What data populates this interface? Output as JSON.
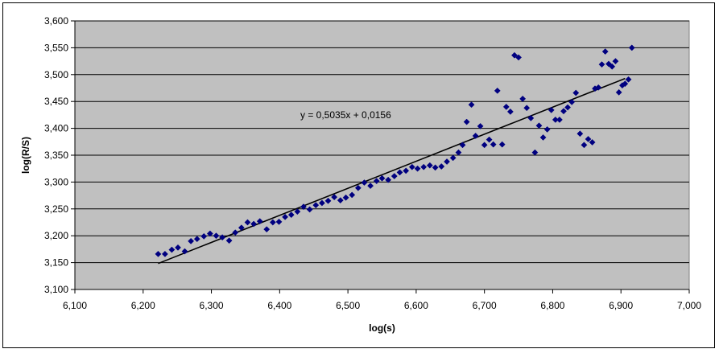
{
  "chart_data": {
    "type": "scatter",
    "xlabel": "log(s)",
    "ylabel": "log(R/S)",
    "xlim": [
      6.1,
      7.0
    ],
    "ylim": [
      3.1,
      3.6
    ],
    "x_ticks": [
      "6,100",
      "6,200",
      "6,300",
      "6,400",
      "6,500",
      "6,600",
      "6,700",
      "6,800",
      "6,900",
      "7,000"
    ],
    "y_ticks": [
      "3,100",
      "3,150",
      "3,200",
      "3,250",
      "3,300",
      "3,350",
      "3,400",
      "3,450",
      "3,500",
      "3,550",
      "3,600"
    ],
    "grid": "horizontal",
    "plot_background": "#c0c0c0",
    "marker_color": "#000080",
    "trendline": {
      "equation": "y = 0,5035x + 0,0156",
      "slope": 0.5035,
      "intercept": 0.0156,
      "x_range": [
        6.222,
        6.906
      ],
      "color": "#000000"
    },
    "points": [
      [
        6.222,
        3.166
      ],
      [
        6.232,
        3.166
      ],
      [
        6.242,
        3.174
      ],
      [
        6.251,
        3.178
      ],
      [
        6.261,
        3.171
      ],
      [
        6.27,
        3.19
      ],
      [
        6.279,
        3.194
      ],
      [
        6.289,
        3.199
      ],
      [
        6.298,
        3.204
      ],
      [
        6.307,
        3.2
      ],
      [
        6.316,
        3.197
      ],
      [
        6.326,
        3.191
      ],
      [
        6.335,
        3.206
      ],
      [
        6.344,
        3.215
      ],
      [
        6.353,
        3.225
      ],
      [
        6.362,
        3.222
      ],
      [
        6.371,
        3.227
      ],
      [
        6.381,
        3.212
      ],
      [
        6.39,
        3.225
      ],
      [
        6.399,
        3.226
      ],
      [
        6.408,
        3.235
      ],
      [
        6.417,
        3.239
      ],
      [
        6.426,
        3.245
      ],
      [
        6.435,
        3.254
      ],
      [
        6.444,
        3.249
      ],
      [
        6.453,
        3.257
      ],
      [
        6.462,
        3.261
      ],
      [
        6.471,
        3.265
      ],
      [
        6.48,
        3.272
      ],
      [
        6.489,
        3.266
      ],
      [
        6.497,
        3.271
      ],
      [
        6.506,
        3.276
      ],
      [
        6.515,
        3.289
      ],
      [
        6.524,
        3.299
      ],
      [
        6.533,
        3.293
      ],
      [
        6.542,
        3.302
      ],
      [
        6.55,
        3.307
      ],
      [
        6.559,
        3.304
      ],
      [
        6.568,
        3.311
      ],
      [
        6.576,
        3.318
      ],
      [
        6.585,
        3.321
      ],
      [
        6.594,
        3.328
      ],
      [
        6.602,
        3.325
      ],
      [
        6.611,
        3.328
      ],
      [
        6.62,
        3.331
      ],
      [
        6.628,
        3.327
      ],
      [
        6.637,
        3.329
      ],
      [
        6.645,
        3.338
      ],
      [
        6.654,
        3.345
      ],
      [
        6.662,
        3.355
      ],
      [
        6.668,
        3.369
      ],
      [
        6.674,
        3.412
      ],
      [
        6.681,
        3.444
      ],
      [
        6.687,
        3.386
      ],
      [
        6.694,
        3.404
      ],
      [
        6.7,
        3.369
      ],
      [
        6.707,
        3.379
      ],
      [
        6.713,
        3.37
      ],
      [
        6.719,
        3.47
      ],
      [
        6.726,
        3.37
      ],
      [
        6.732,
        3.44
      ],
      [
        6.738,
        3.431
      ],
      [
        6.744,
        3.536
      ],
      [
        6.75,
        3.532
      ],
      [
        6.756,
        3.455
      ],
      [
        6.762,
        3.438
      ],
      [
        6.768,
        3.419
      ],
      [
        6.774,
        3.355
      ],
      [
        6.78,
        3.405
      ],
      [
        6.786,
        3.383
      ],
      [
        6.792,
        3.398
      ],
      [
        6.798,
        3.434
      ],
      [
        6.804,
        3.416
      ],
      [
        6.81,
        3.416
      ],
      [
        6.816,
        3.432
      ],
      [
        6.822,
        3.439
      ],
      [
        6.828,
        3.449
      ],
      [
        6.834,
        3.466
      ],
      [
        6.84,
        3.39
      ],
      [
        6.846,
        3.369
      ],
      [
        6.852,
        3.38
      ],
      [
        6.858,
        3.374
      ],
      [
        6.862,
        3.474
      ],
      [
        6.867,
        3.476
      ],
      [
        6.872,
        3.519
      ],
      [
        6.877,
        3.543
      ],
      [
        6.882,
        3.52
      ],
      [
        6.887,
        3.515
      ],
      [
        6.892,
        3.525
      ],
      [
        6.897,
        3.467
      ],
      [
        6.902,
        3.48
      ],
      [
        6.906,
        3.483
      ],
      [
        6.911,
        3.491
      ],
      [
        6.916,
        3.55
      ]
    ]
  }
}
